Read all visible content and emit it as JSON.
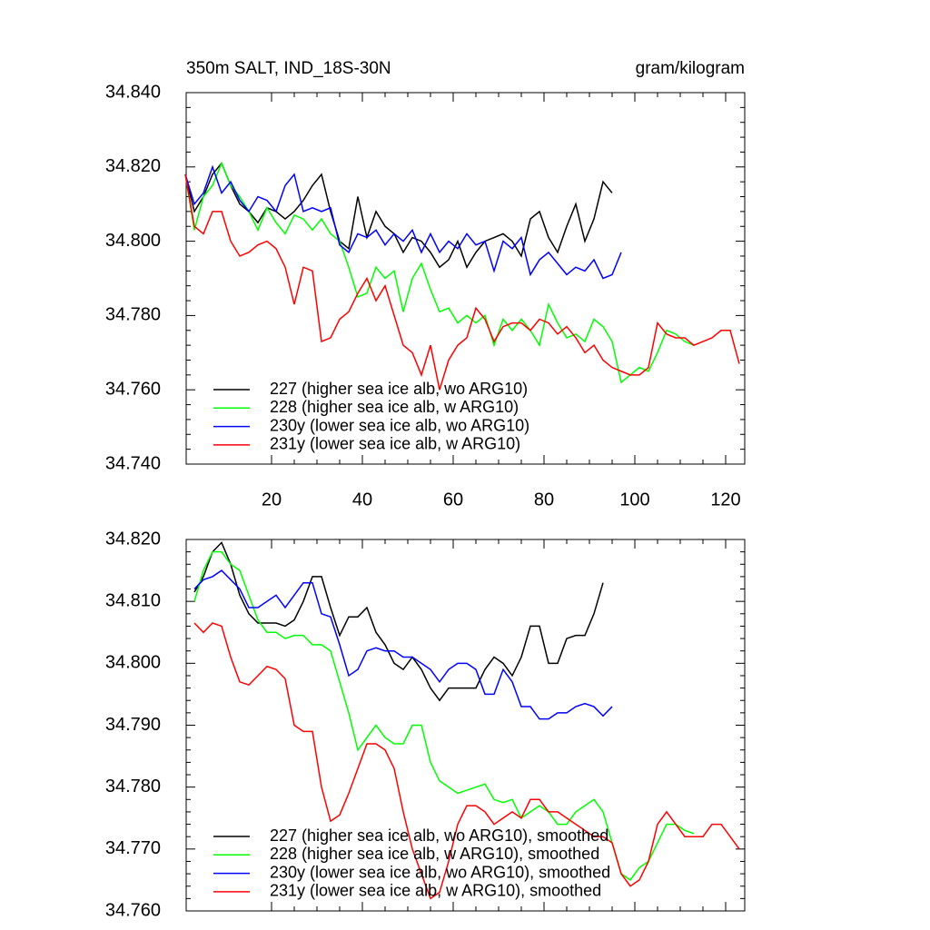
{
  "chart_data": [
    {
      "type": "line",
      "title": "350m SALT, IND_18S-30N",
      "units": "gram/kilogram",
      "x": [
        1,
        3,
        5,
        7,
        9,
        11,
        13,
        15,
        17,
        19,
        21,
        23,
        25,
        27,
        29,
        31,
        33,
        35,
        37,
        39,
        41,
        43,
        45,
        47,
        49,
        51,
        53,
        55,
        57,
        59,
        61,
        63,
        65,
        67,
        69,
        71,
        73,
        75,
        77,
        79,
        81,
        83,
        85,
        87,
        89,
        91,
        93,
        95,
        97,
        99,
        101,
        103,
        105,
        107,
        109,
        111,
        113,
        115,
        117,
        119,
        121,
        123
      ],
      "xlim": [
        1.2,
        124.2
      ],
      "xticks": [
        20,
        40,
        60,
        80,
        100,
        120
      ],
      "ylim": [
        34.74,
        34.84
      ],
      "yticks": [
        {
          "value": 34.74,
          "label": "34.740"
        },
        {
          "value": 34.76,
          "label": "34.760"
        },
        {
          "value": 34.78,
          "label": "34.780"
        },
        {
          "value": 34.8,
          "label": "34.800"
        },
        {
          "value": 34.82,
          "label": "34.820"
        },
        {
          "value": 34.84,
          "label": "34.840"
        }
      ],
      "legend": "lower left",
      "series": [
        {
          "name": "227 (higher sea ice alb, wo ARG10)",
          "color": "#000000",
          "values": [
            34.818,
            34.808,
            34.812,
            34.818,
            34.821,
            34.815,
            34.81,
            34.808,
            34.805,
            34.809,
            34.808,
            34.806,
            34.808,
            34.811,
            34.815,
            34.818,
            34.808,
            34.8,
            34.798,
            34.812,
            34.801,
            34.808,
            34.804,
            34.802,
            34.797,
            34.801,
            34.8,
            34.797,
            34.793,
            34.795,
            34.8,
            34.793,
            34.797,
            34.8,
            34.801,
            34.802,
            34.8,
            34.796,
            34.806,
            34.808,
            34.801,
            34.797,
            34.804,
            34.81,
            34.8,
            34.806,
            34.816,
            34.813,
            null,
            null,
            null,
            null,
            null,
            null,
            null,
            null,
            null,
            null,
            null,
            null,
            null,
            null
          ]
        },
        {
          "name": "228 (higher sea ice alb, w ARG10)",
          "color": "#00ff00",
          "values": [
            34.818,
            34.803,
            34.812,
            34.815,
            34.821,
            34.815,
            34.812,
            34.808,
            34.803,
            34.809,
            34.805,
            34.802,
            34.807,
            34.806,
            34.803,
            34.806,
            34.802,
            34.8,
            34.793,
            34.785,
            34.786,
            34.793,
            34.79,
            34.792,
            34.781,
            34.79,
            34.794,
            34.787,
            34.781,
            34.782,
            34.778,
            34.78,
            34.778,
            34.78,
            34.772,
            34.779,
            34.776,
            34.779,
            34.776,
            34.772,
            34.783,
            34.778,
            34.774,
            34.775,
            34.773,
            34.779,
            34.777,
            34.773,
            34.762,
            34.764,
            34.766,
            34.765,
            34.77,
            34.776,
            34.775,
            34.773,
            34.772,
            null,
            null,
            null,
            null,
            null
          ]
        },
        {
          "name": "230y (lower sea ice alb, wo ARG10)",
          "color": "#0000ff",
          "values": [
            34.818,
            34.81,
            34.813,
            34.82,
            34.813,
            34.816,
            34.811,
            34.808,
            34.812,
            34.811,
            34.808,
            34.815,
            34.818,
            34.808,
            34.809,
            34.808,
            34.809,
            34.799,
            34.797,
            34.802,
            34.801,
            34.803,
            34.799,
            34.802,
            34.8,
            34.803,
            34.797,
            34.802,
            34.797,
            34.8,
            34.798,
            34.802,
            34.799,
            34.8,
            34.792,
            34.8,
            34.798,
            34.801,
            34.791,
            34.795,
            34.797,
            34.794,
            34.791,
            34.793,
            34.792,
            34.795,
            34.79,
            34.791,
            34.797,
            null,
            null,
            null,
            null,
            null,
            null,
            null,
            null,
            null,
            null,
            null,
            null,
            null
          ]
        },
        {
          "name": "231y (lower sea ice alb, w ARG10)",
          "color": "#ff0000",
          "values": [
            34.818,
            34.804,
            34.802,
            34.808,
            34.808,
            34.8,
            34.796,
            34.797,
            34.799,
            34.8,
            34.798,
            34.793,
            34.783,
            34.793,
            34.792,
            34.773,
            34.774,
            34.779,
            34.781,
            34.786,
            34.79,
            34.784,
            34.788,
            34.78,
            34.772,
            34.77,
            34.764,
            34.772,
            34.76,
            34.768,
            34.772,
            34.774,
            34.782,
            34.779,
            34.773,
            34.777,
            34.778,
            34.778,
            34.776,
            34.779,
            34.778,
            34.775,
            34.777,
            34.774,
            34.77,
            34.772,
            34.768,
            34.766,
            34.765,
            34.764,
            34.764,
            34.766,
            34.778,
            34.775,
            34.774,
            34.774,
            34.772,
            34.773,
            34.774,
            34.776,
            34.776,
            34.767
          ]
        }
      ]
    },
    {
      "type": "line",
      "x": [
        1,
        3,
        5,
        7,
        9,
        11,
        13,
        15,
        17,
        19,
        21,
        23,
        25,
        27,
        29,
        31,
        33,
        35,
        37,
        39,
        41,
        43,
        45,
        47,
        49,
        51,
        53,
        55,
        57,
        59,
        61,
        63,
        65,
        67,
        69,
        71,
        73,
        75,
        77,
        79,
        81,
        83,
        85,
        87,
        89,
        91,
        93,
        95,
        97,
        99,
        101,
        103,
        105,
        107,
        109,
        111,
        113,
        115,
        117,
        119,
        121,
        123
      ],
      "xlim": [
        1.2,
        124.2
      ],
      "xticks": [
        20,
        40,
        60,
        80,
        100,
        120
      ],
      "xtick_labels": false,
      "ylim": [
        34.76,
        34.82
      ],
      "yticks": [
        {
          "value": 34.76,
          "label": "34.760"
        },
        {
          "value": 34.77,
          "label": "34.770"
        },
        {
          "value": 34.78,
          "label": "34.780"
        },
        {
          "value": 34.79,
          "label": "34.790"
        },
        {
          "value": 34.8,
          "label": "34.800"
        },
        {
          "value": 34.81,
          "label": "34.810"
        },
        {
          "value": 34.82,
          "label": "34.820"
        }
      ],
      "legend": "lower left",
      "series": [
        {
          "name": "227 (higher sea ice alb, wo ARG10), smoothed",
          "color": "#000000",
          "values": [
            null,
            34.8115,
            34.814,
            34.818,
            34.8195,
            34.816,
            34.811,
            34.808,
            34.8065,
            34.8065,
            34.8065,
            34.806,
            34.807,
            34.81,
            34.814,
            34.814,
            34.809,
            34.8045,
            34.8075,
            34.8075,
            34.809,
            34.805,
            34.803,
            34.8,
            34.799,
            34.801,
            34.799,
            34.796,
            34.794,
            34.796,
            34.796,
            34.796,
            34.796,
            34.799,
            34.801,
            34.8,
            34.798,
            34.801,
            34.806,
            34.806,
            34.8,
            34.8,
            34.804,
            34.8045,
            34.8045,
            34.808,
            34.813,
            null,
            null,
            null,
            null,
            null,
            null,
            null,
            null,
            null,
            null,
            null,
            null,
            null,
            null,
            null
          ]
        },
        {
          "name": "228 (higher sea ice alb, w ARG10), smoothed",
          "color": "#00ff00",
          "values": [
            null,
            34.81,
            34.815,
            34.818,
            34.818,
            34.816,
            34.815,
            34.811,
            34.807,
            34.805,
            34.805,
            34.804,
            34.8045,
            34.8045,
            34.803,
            34.803,
            34.802,
            34.797,
            34.792,
            34.786,
            34.788,
            34.79,
            34.788,
            34.787,
            34.787,
            34.79,
            34.79,
            34.784,
            34.781,
            34.78,
            34.779,
            34.7795,
            34.78,
            34.7805,
            34.778,
            34.7775,
            34.778,
            34.775,
            34.776,
            34.777,
            34.776,
            34.774,
            34.774,
            34.776,
            34.777,
            34.778,
            34.776,
            34.771,
            34.766,
            34.765,
            34.767,
            34.768,
            34.771,
            34.774,
            34.774,
            34.773,
            34.7725,
            null,
            null,
            null,
            null,
            null
          ]
        },
        {
          "name": "230y (lower sea ice alb, wo ARG10), smoothed",
          "color": "#0000ff",
          "values": [
            null,
            34.812,
            34.8135,
            34.814,
            34.815,
            34.8135,
            34.812,
            34.809,
            34.809,
            34.81,
            34.811,
            34.809,
            34.811,
            34.813,
            34.813,
            34.808,
            34.8075,
            34.803,
            34.798,
            34.799,
            34.802,
            34.8025,
            34.802,
            34.802,
            34.801,
            34.801,
            34.8,
            34.799,
            34.797,
            34.799,
            34.8,
            34.8,
            34.799,
            34.795,
            34.795,
            34.799,
            34.797,
            34.793,
            34.793,
            34.791,
            34.791,
            34.792,
            34.792,
            34.793,
            34.7935,
            34.793,
            34.7915,
            34.793,
            null,
            null,
            null,
            null,
            null,
            null,
            null,
            null,
            null,
            null,
            null,
            null,
            null,
            null
          ]
        },
        {
          "name": "231y (lower sea ice alb, w ARG10), smoothed",
          "color": "#ff0000",
          "values": [
            null,
            34.8065,
            34.805,
            34.8065,
            34.806,
            34.801,
            34.797,
            34.7965,
            34.798,
            34.7995,
            34.799,
            34.7975,
            34.79,
            34.789,
            34.789,
            34.78,
            34.7745,
            34.7755,
            34.779,
            34.783,
            34.787,
            34.787,
            34.786,
            34.783,
            34.776,
            34.77,
            34.766,
            34.762,
            34.763,
            34.768,
            34.774,
            34.777,
            34.777,
            34.776,
            34.774,
            34.775,
            34.776,
            34.775,
            34.778,
            34.778,
            34.776,
            34.776,
            34.775,
            34.774,
            34.773,
            34.772,
            34.772,
            34.771,
            34.766,
            34.764,
            34.765,
            34.768,
            34.774,
            34.776,
            34.774,
            34.772,
            34.772,
            34.772,
            34.774,
            34.774,
            34.772,
            34.77
          ]
        }
      ]
    }
  ]
}
